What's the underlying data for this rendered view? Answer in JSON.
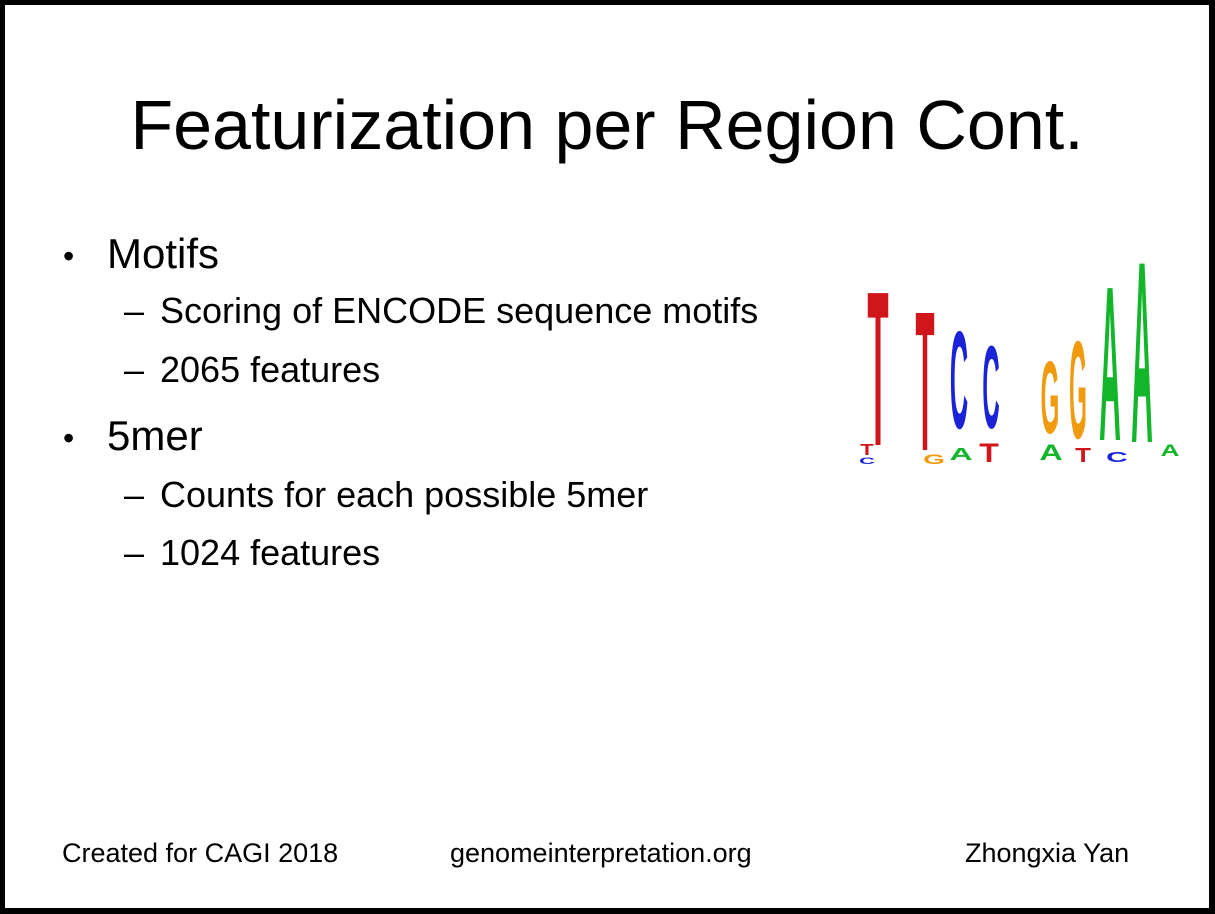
{
  "slide": {
    "title": "Featurization per Region Cont.",
    "bullets": [
      {
        "text": "Motifs",
        "subitems": [
          "Scoring of ENCODE sequence motifs",
          "2065 features"
        ]
      },
      {
        "text": "5mer",
        "subitems": [
          "Counts for each possible 5mer",
          "1024 features"
        ]
      }
    ],
    "bullet_glyph": "•",
    "dash_glyph": "–",
    "sequence_logo": {
      "letters_main": [
        "T",
        "T",
        "C",
        "C",
        "G",
        "G",
        "A",
        "A"
      ],
      "letters_minor": [
        "T",
        "C",
        "G",
        "A",
        "T",
        "A",
        "T",
        "C",
        "A"
      ],
      "colors": {
        "T": "#d0161b",
        "C": "#1b23d8",
        "G": "#f09a0d",
        "A": "#13b52a"
      }
    }
  },
  "footer": {
    "left": "Created for CAGI 2018",
    "center": "genomeinterpretation.org",
    "right": "Zhongxia Yan"
  }
}
